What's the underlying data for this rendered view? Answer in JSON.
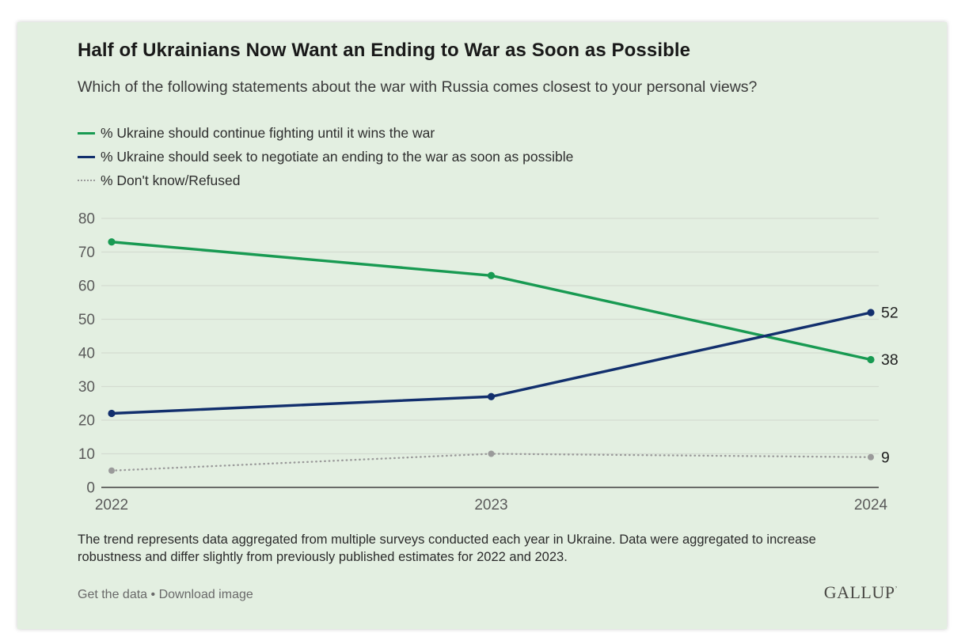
{
  "panel": {
    "title": "Half of Ukrainians Now Want an Ending to War as Soon as Possible",
    "subtitle": "Which of the following statements about the war with Russia comes closest to your personal views?",
    "footnote": "The trend represents data aggregated from multiple surveys conducted each year in Ukraine. Data were aggregated to increase robustness and differ slightly from previously published estimates for 2022 and 2023.",
    "links": {
      "get_data": "Get the data",
      "separator": "•",
      "download": "Download image"
    },
    "brand": "GALLUP",
    "brand_mark": "’"
  },
  "colors": {
    "panel_bg": "#e3efe1",
    "green": "#189a52",
    "navy": "#122f6d",
    "gray": "#9a9a9a",
    "gridline": "#d4dcd1",
    "axis_line": "#3f3f3f",
    "tick_label": "#5a5a5a",
    "end_label": "#1f1f1f"
  },
  "chart_data": {
    "type": "line",
    "x": [
      "2022",
      "2023",
      "2024"
    ],
    "series": [
      {
        "name": "% Ukraine should continue fighting until it wins the war",
        "color_key": "green",
        "style": "solid",
        "values": [
          73,
          63,
          38
        ],
        "end_label": "38"
      },
      {
        "name": "% Ukraine should seek to negotiate an ending to the war as soon as possible",
        "color_key": "navy",
        "style": "solid",
        "values": [
          22,
          27,
          52
        ],
        "end_label": "52"
      },
      {
        "name": "% Don't know/Refused",
        "color_key": "gray",
        "style": "dotted",
        "values": [
          5,
          10,
          9
        ],
        "end_label": "9"
      }
    ],
    "ylim": [
      0,
      80
    ],
    "ytick_step": 10,
    "grid": true,
    "legend_position": "top-left",
    "unit": "%"
  }
}
